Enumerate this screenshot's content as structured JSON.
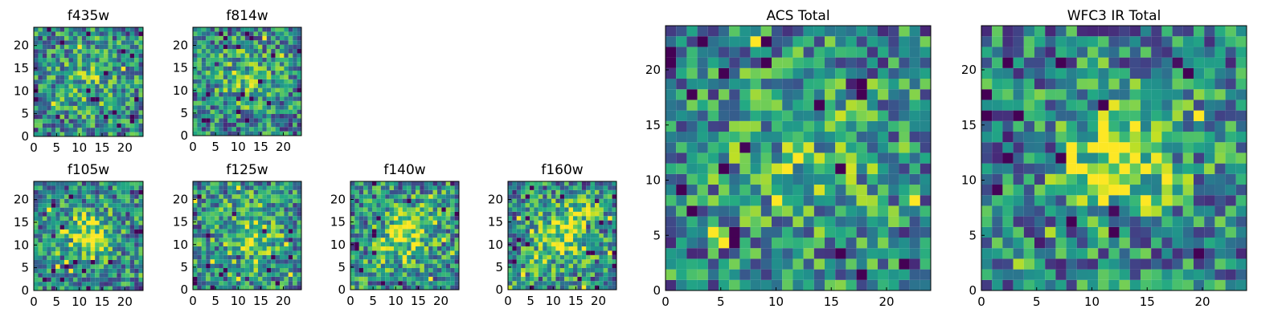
{
  "chart_data": [
    {
      "type": "heatmap",
      "title": "f435w",
      "xlim": [
        0,
        24
      ],
      "ylim": [
        0,
        24
      ],
      "x_ticks": [
        "0",
        "5",
        "10",
        "15",
        "20"
      ],
      "y_ticks": [
        "0",
        "5",
        "10",
        "15",
        "20"
      ],
      "grid": false,
      "colormap": "viridis",
      "pattern": "noisy stamp, slight central concentration"
    },
    {
      "type": "heatmap",
      "title": "f814w",
      "xlim": [
        0,
        24
      ],
      "ylim": [
        0,
        24
      ],
      "x_ticks": [
        "0",
        "5",
        "10",
        "15",
        "20"
      ],
      "y_ticks": [
        "0",
        "5",
        "10",
        "15",
        "20"
      ],
      "grid": false,
      "colormap": "viridis",
      "pattern": "noisy stamp, slight central concentration"
    },
    {
      "type": "heatmap",
      "title": "f105w",
      "xlim": [
        0,
        24
      ],
      "ylim": [
        0,
        24
      ],
      "x_ticks": [
        "0",
        "5",
        "10",
        "15",
        "20"
      ],
      "y_ticks": [
        "0",
        "5",
        "10",
        "15",
        "20"
      ],
      "grid": false,
      "colormap": "viridis",
      "pattern": "bright central source"
    },
    {
      "type": "heatmap",
      "title": "f125w",
      "xlim": [
        0,
        24
      ],
      "ylim": [
        0,
        24
      ],
      "x_ticks": [
        "0",
        "5",
        "10",
        "15",
        "20"
      ],
      "y_ticks": [
        "0",
        "5",
        "10",
        "15",
        "20"
      ],
      "grid": false,
      "colormap": "viridis",
      "pattern": "diffuse central source"
    },
    {
      "type": "heatmap",
      "title": "f140w",
      "xlim": [
        0,
        24
      ],
      "ylim": [
        0,
        24
      ],
      "x_ticks": [
        "0",
        "5",
        "10",
        "15",
        "20"
      ],
      "y_ticks": [
        "0",
        "5",
        "10",
        "15",
        "20"
      ],
      "grid": false,
      "colormap": "viridis",
      "pattern": "bright diagonal central source"
    },
    {
      "type": "heatmap",
      "title": "f160w",
      "xlim": [
        0,
        24
      ],
      "ylim": [
        0,
        24
      ],
      "x_ticks": [
        "0",
        "5",
        "10",
        "15",
        "20"
      ],
      "y_ticks": [
        "0",
        "5",
        "10",
        "15",
        "20"
      ],
      "grid": false,
      "colormap": "viridis",
      "pattern": "bright diagonal central source"
    },
    {
      "type": "heatmap",
      "title": "ACS Total",
      "xlim": [
        0,
        24
      ],
      "ylim": [
        0,
        24
      ],
      "x_ticks": [
        "0",
        "5",
        "10",
        "15",
        "20"
      ],
      "y_ticks": [
        "0",
        "5",
        "10",
        "15",
        "20"
      ],
      "grid": false,
      "colormap": "viridis",
      "pattern": "combined optical stamp, weak central source"
    },
    {
      "type": "heatmap",
      "title": "WFC3 IR Total",
      "xlim": [
        0,
        24
      ],
      "ylim": [
        0,
        24
      ],
      "x_ticks": [
        "0",
        "5",
        "10",
        "15",
        "20"
      ],
      "y_ticks": [
        "0",
        "5",
        "10",
        "15",
        "20"
      ],
      "grid": false,
      "colormap": "viridis",
      "pattern": "combined infrared stamp, bright central source"
    }
  ]
}
